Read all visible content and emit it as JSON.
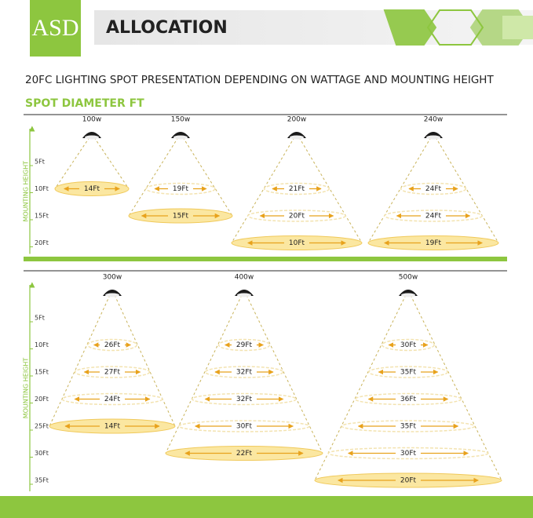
{
  "header": {
    "logo": "ASD",
    "title": "ALLOCATION"
  },
  "subtitle": "20FC LIGHTING SPOT PRESENTATION DEPENDING  ON WATTAGE AND MOUNTING HEIGHT",
  "section_title": "SPOT DIAMETER FT",
  "panels": [
    {
      "axis_label": "MOUNTING HEIGHT",
      "heights": [
        "5Ft",
        "10Ft",
        "15Ft",
        "20Ft"
      ],
      "lamps": [
        {
          "wattage": "100w",
          "spots": [
            "14Ft"
          ]
        },
        {
          "wattage": "150w",
          "spots": [
            "19Ft",
            "15Ft"
          ]
        },
        {
          "wattage": "200w",
          "spots": [
            "21Ft",
            "20Ft",
            "10Ft"
          ]
        },
        {
          "wattage": "240w",
          "spots": [
            "24Ft",
            "24Ft",
            "19Ft"
          ]
        }
      ]
    },
    {
      "axis_label": "MOUNTING HEIGHT",
      "heights": [
        "5Ft",
        "10Ft",
        "15Ft",
        "20Ft",
        "25Ft",
        "30Ft",
        "35Ft"
      ],
      "lamps": [
        {
          "wattage": "300w",
          "spots": [
            "26Ft",
            "27Ft",
            "24Ft",
            "14Ft"
          ]
        },
        {
          "wattage": "400w",
          "spots": [
            "29Ft",
            "32Ft",
            "32Ft",
            "30Ft",
            "22Ft"
          ]
        },
        {
          "wattage": "500w",
          "spots": [
            "30Ft",
            "35Ft",
            "36Ft",
            "35Ft",
            "30Ft",
            "20Ft"
          ]
        }
      ]
    }
  ]
}
